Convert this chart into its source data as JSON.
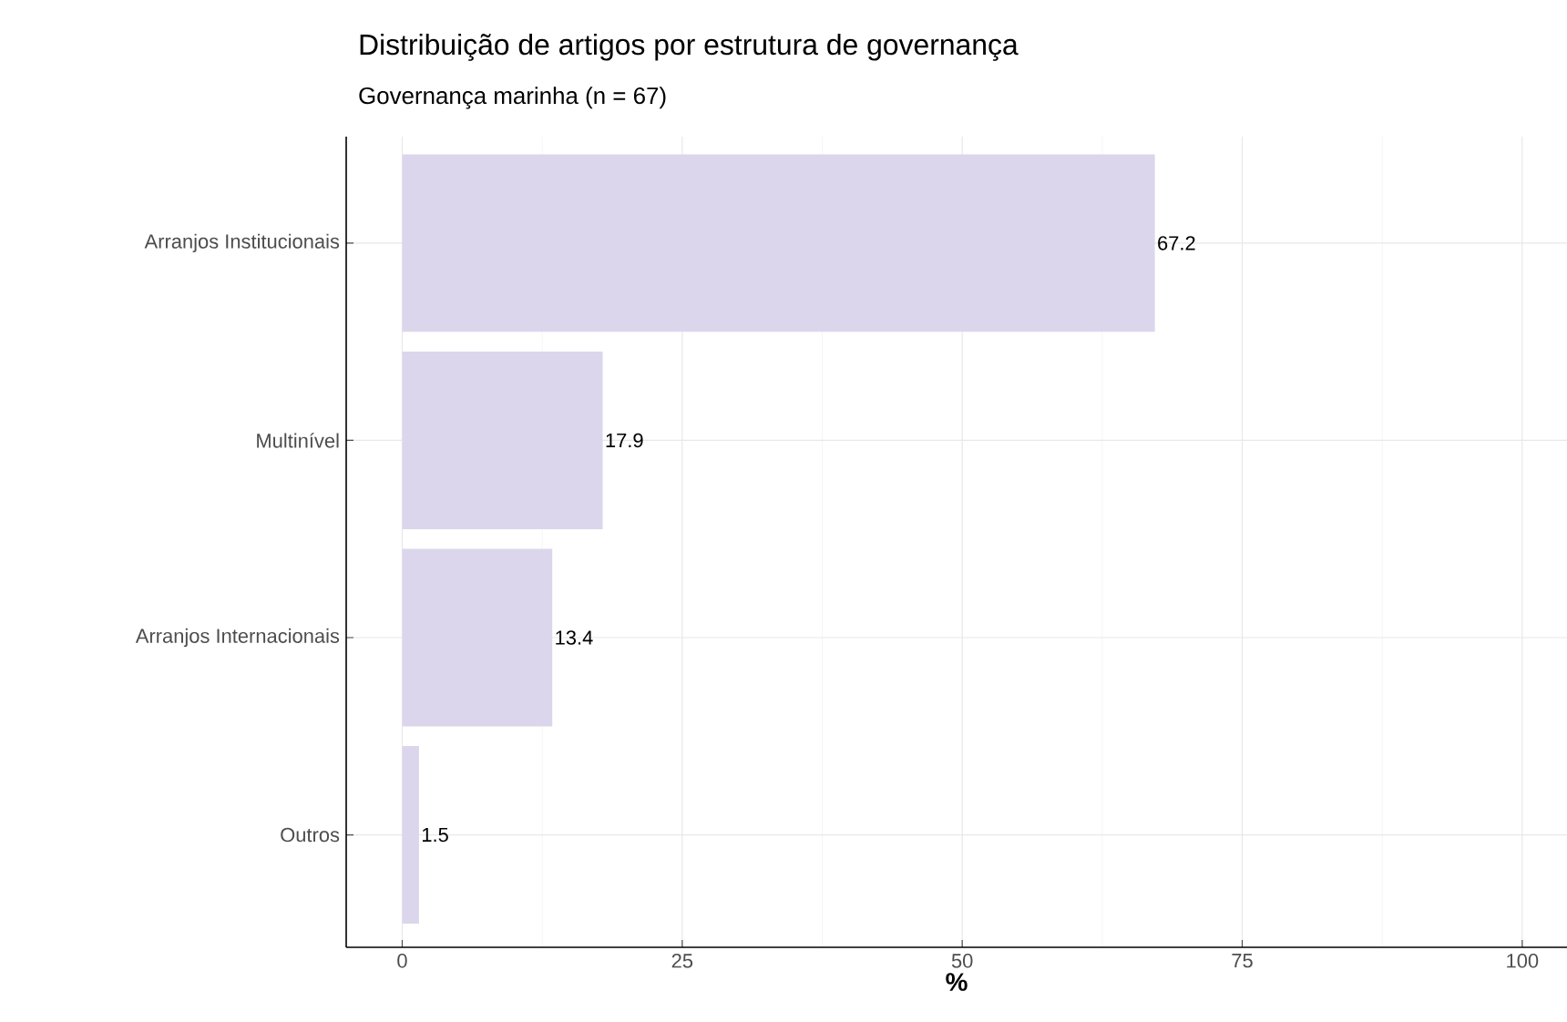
{
  "chart_data": {
    "type": "bar",
    "orientation": "horizontal",
    "title": "Distribuição de artigos por estrutura de governança",
    "subtitle": "Governança marinha (n = 67)",
    "xlabel": "%",
    "categories": [
      "Arranjos Institucionais",
      "Multinível",
      "Arranjos Internacionais",
      "Outros"
    ],
    "values": [
      67.2,
      17.9,
      13.4,
      1.5
    ],
    "color": "#dcd6ec",
    "data_labels": true,
    "xlim": [
      -5,
      104
    ],
    "xticks": [
      0,
      25,
      50,
      75,
      100
    ],
    "grid": true
  }
}
